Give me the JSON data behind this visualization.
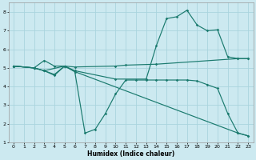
{
  "xlabel": "Humidex (Indice chaleur)",
  "bg_color": "#cce9f0",
  "grid_color": "#aad4de",
  "line_color": "#1a7a6e",
  "xlim": [
    -0.5,
    23.5
  ],
  "ylim": [
    1,
    8.5
  ],
  "xticks": [
    0,
    1,
    2,
    3,
    4,
    5,
    6,
    7,
    8,
    9,
    10,
    11,
    12,
    13,
    14,
    15,
    16,
    17,
    18,
    19,
    20,
    21,
    22,
    23
  ],
  "yticks": [
    1,
    2,
    3,
    4,
    5,
    6,
    7,
    8
  ],
  "lines": [
    {
      "x": [
        0,
        2,
        3,
        5,
        6,
        10,
        11,
        14,
        22,
        23
      ],
      "y": [
        5.1,
        5.0,
        4.85,
        5.1,
        5.05,
        5.1,
        5.15,
        5.2,
        5.5,
        5.5
      ]
    },
    {
      "x": [
        0,
        2,
        3,
        4,
        5,
        6,
        7,
        8,
        9,
        10,
        11,
        12,
        13,
        14,
        15,
        16,
        17,
        18,
        19,
        20,
        21,
        22,
        23
      ],
      "y": [
        5.1,
        5.0,
        4.85,
        4.65,
        5.1,
        4.8,
        1.5,
        1.7,
        2.55,
        3.6,
        4.35,
        4.35,
        4.35,
        4.35,
        4.35,
        4.35,
        4.35,
        4.3,
        4.1,
        3.9,
        2.55,
        1.5,
        1.35
      ]
    },
    {
      "x": [
        0,
        2,
        3,
        4,
        5,
        6,
        10,
        13,
        14,
        15,
        16,
        17,
        18,
        19,
        20,
        21,
        22,
        23
      ],
      "y": [
        5.1,
        5.0,
        5.4,
        5.1,
        5.1,
        4.85,
        4.4,
        4.4,
        6.2,
        7.65,
        7.75,
        8.1,
        7.3,
        7.0,
        7.05,
        5.6,
        5.5,
        5.5
      ]
    },
    {
      "x": [
        0,
        2,
        3,
        4,
        5,
        6,
        22,
        23
      ],
      "y": [
        5.1,
        5.0,
        4.85,
        4.6,
        5.1,
        4.8,
        1.5,
        1.35
      ]
    }
  ]
}
